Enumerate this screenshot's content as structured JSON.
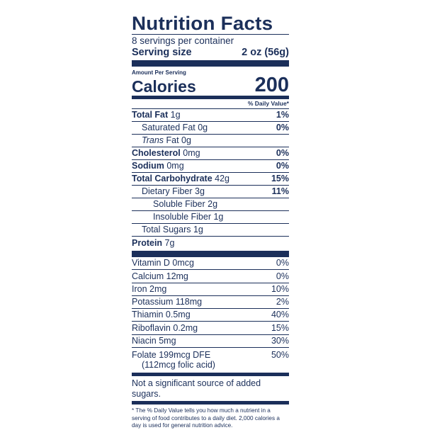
{
  "label": {
    "title": "Nutrition Facts",
    "servings_per_container": "8 servings per container",
    "serving_size_label": "Serving size",
    "serving_size_value": "2 oz (56g)",
    "amount_per_serving": "Amount Per Serving",
    "calories_label": "Calories",
    "calories_value": "200",
    "daily_value_header": "% Daily Value*",
    "nutrients": [
      {
        "name": "Total Fat",
        "amount": "1g",
        "dv": "1%"
      },
      {
        "name": "Saturated Fat",
        "amount": "0g",
        "dv": "0%"
      },
      {
        "name": "Trans",
        "amount": "Fat 0g",
        "dv": ""
      },
      {
        "name": "Cholesterol",
        "amount": "0mg",
        "dv": "0%"
      },
      {
        "name": "Sodium",
        "amount": "0mg",
        "dv": "0%"
      },
      {
        "name": "Total Carbohydrate",
        "amount": "42g",
        "dv": "15%"
      },
      {
        "name": "Dietary Fiber",
        "amount": "3g",
        "dv": "11%"
      },
      {
        "name": "Soluble Fiber",
        "amount": "2g",
        "dv": ""
      },
      {
        "name": "Insoluble Fiber",
        "amount": "1g",
        "dv": ""
      },
      {
        "name": "Total Sugars",
        "amount": "1g",
        "dv": ""
      },
      {
        "name": "Protein",
        "amount": "7g",
        "dv": ""
      }
    ],
    "vitamins": [
      {
        "text": "Vitamin D 0mcg",
        "dv": "0%"
      },
      {
        "text": "Calcium 12mg",
        "dv": "0%"
      },
      {
        "text": "Iron 2mg",
        "dv": "10%"
      },
      {
        "text": "Potassium 118mg",
        "dv": "2%"
      },
      {
        "text": "Thiamin 0.5mg",
        "dv": "40%"
      },
      {
        "text": "Riboflavin 0.2mg",
        "dv": "15%"
      },
      {
        "text": "Niacin 5mg",
        "dv": "30%"
      }
    ],
    "folate": {
      "line1": "Folate 199mcg DFE",
      "line2": "(112mcg folic acid)",
      "dv": "50%"
    },
    "sugars_note": "Not a significant source of added sugars.",
    "footnote": "* The % Daily Value tells you how much a nutrient in a serving of food contributes to a daily diet. 2,000 calories a day is used for general nutrition advice."
  },
  "colors": {
    "ink": "#1b2f5a",
    "background": "#ffffff"
  }
}
